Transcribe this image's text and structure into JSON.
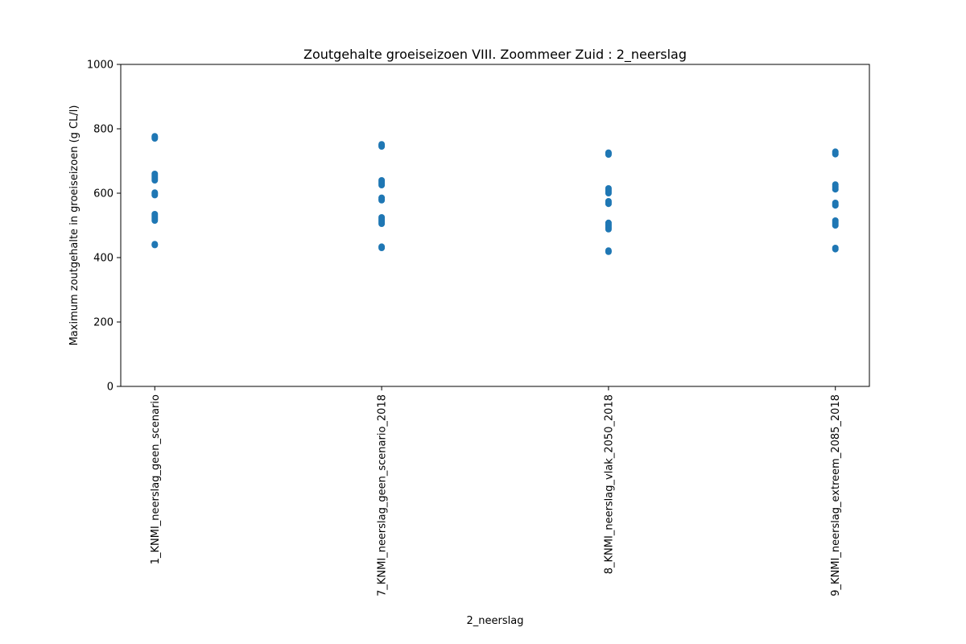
{
  "chart_data": {
    "type": "scatter",
    "title": "Zoutgehalte groeiseizoen VIII. Zoommeer Zuid : 2_neerslag",
    "xlabel": "2_neerslag",
    "ylabel": "Maximum zoutgehalte in groeiseizoen (g CL/l)",
    "ylim": [
      0,
      1000
    ],
    "yticks": [
      0,
      200,
      400,
      600,
      800,
      1000
    ],
    "grid": false,
    "legend": "none",
    "marker_color": "#1f77b4",
    "categories": [
      "1_KNMI_neerslag_geen_scenario",
      "7_KNMI_neerslag_geen_scenario_2018",
      "8_KNMI_neerslag_vlak_2050_2018",
      "9_KNMI_neerslag_extreem_2085_2018"
    ],
    "points": [
      [
        1,
        439
      ],
      [
        1,
        442
      ],
      [
        1,
        515
      ],
      [
        1,
        520
      ],
      [
        1,
        525
      ],
      [
        1,
        530
      ],
      [
        1,
        535
      ],
      [
        1,
        594
      ],
      [
        1,
        598
      ],
      [
        1,
        602
      ],
      [
        1,
        640
      ],
      [
        1,
        645
      ],
      [
        1,
        650
      ],
      [
        1,
        655
      ],
      [
        1,
        660
      ],
      [
        1,
        770
      ],
      [
        1,
        773
      ],
      [
        1,
        777
      ],
      [
        2,
        430
      ],
      [
        2,
        434
      ],
      [
        2,
        505
      ],
      [
        2,
        510
      ],
      [
        2,
        515
      ],
      [
        2,
        520
      ],
      [
        2,
        525
      ],
      [
        2,
        578
      ],
      [
        2,
        582
      ],
      [
        2,
        586
      ],
      [
        2,
        625
      ],
      [
        2,
        630
      ],
      [
        2,
        635
      ],
      [
        2,
        640
      ],
      [
        2,
        745
      ],
      [
        2,
        748
      ],
      [
        2,
        752
      ],
      [
        3,
        418
      ],
      [
        3,
        422
      ],
      [
        3,
        488
      ],
      [
        3,
        493
      ],
      [
        3,
        498
      ],
      [
        3,
        503
      ],
      [
        3,
        508
      ],
      [
        3,
        567
      ],
      [
        3,
        571
      ],
      [
        3,
        575
      ],
      [
        3,
        600
      ],
      [
        3,
        605
      ],
      [
        3,
        610
      ],
      [
        3,
        615
      ],
      [
        3,
        720
      ],
      [
        3,
        723
      ],
      [
        3,
        726
      ],
      [
        4,
        426
      ],
      [
        4,
        430
      ],
      [
        4,
        500
      ],
      [
        4,
        505
      ],
      [
        4,
        510
      ],
      [
        4,
        515
      ],
      [
        4,
        562
      ],
      [
        4,
        566
      ],
      [
        4,
        570
      ],
      [
        4,
        612
      ],
      [
        4,
        617
      ],
      [
        4,
        622
      ],
      [
        4,
        627
      ],
      [
        4,
        721
      ],
      [
        4,
        725
      ],
      [
        4,
        729
      ]
    ]
  }
}
